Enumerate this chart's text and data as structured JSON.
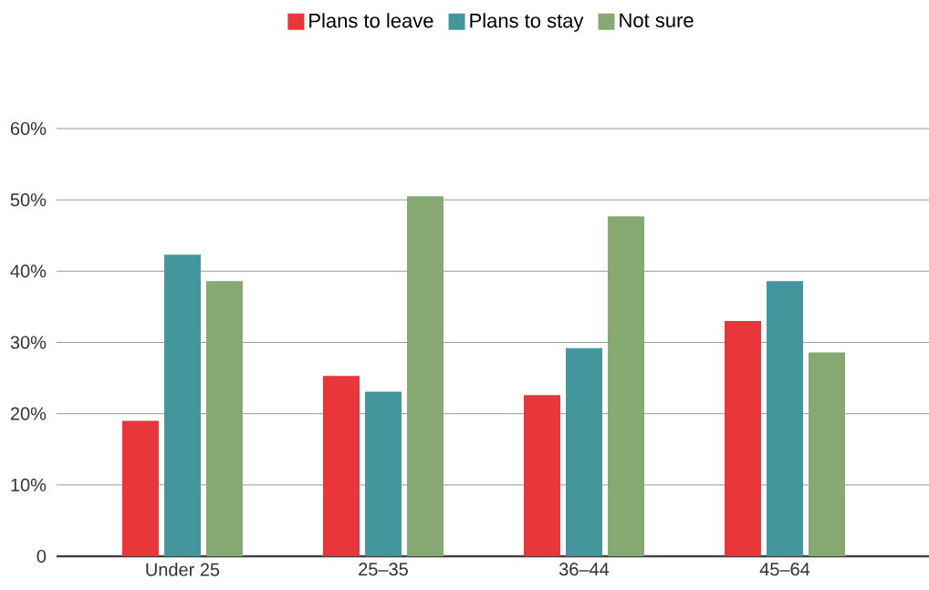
{
  "chart_data": {
    "type": "bar",
    "categories": [
      "Under 25",
      "25–35",
      "36–44",
      "45–64"
    ],
    "series": [
      {
        "name": "Plans to leave",
        "color": "#e8363a",
        "values": [
          19.0,
          25.3,
          22.6,
          33.0
        ]
      },
      {
        "name": "Plans to stay",
        "color": "#43979c",
        "values": [
          42.3,
          23.1,
          29.2,
          38.6
        ]
      },
      {
        "name": "Not sure",
        "color": "#86a971",
        "values": [
          38.6,
          50.5,
          47.7,
          28.6
        ]
      }
    ],
    "ylim": [
      0,
      60
    ],
    "yticks": [
      {
        "value": 0,
        "label": "0"
      },
      {
        "value": 10,
        "label": "10%"
      },
      {
        "value": 20,
        "label": "20%"
      },
      {
        "value": 30,
        "label": "30%"
      },
      {
        "value": 40,
        "label": "40%"
      },
      {
        "value": 50,
        "label": "50%"
      },
      {
        "value": 60,
        "label": "60%"
      }
    ],
    "grid": "y",
    "legend": "top"
  }
}
